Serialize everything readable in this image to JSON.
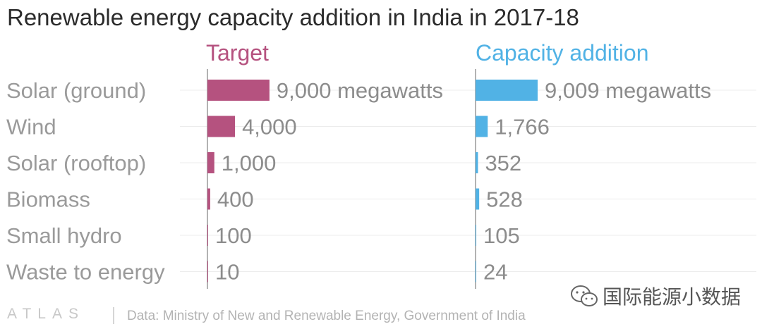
{
  "chart_data": {
    "type": "bar",
    "title": "Renewable energy capacity addition in India in 2017-18",
    "categories": [
      "Solar (ground)",
      "Wind",
      "Solar (rooftop)",
      "Biomass",
      "Small hydro",
      "Waste to energy"
    ],
    "series": [
      {
        "name": "Target",
        "values": [
          9000,
          4000,
          1000,
          400,
          100,
          10
        ],
        "labels": [
          "9,000 megawatts",
          "4,000",
          "1,000",
          "400",
          "100",
          "10"
        ],
        "color": "#b5527f"
      },
      {
        "name": "Capacity addition",
        "values": [
          9009,
          1766,
          352,
          528,
          105,
          24
        ],
        "labels": [
          "9,009 megawatts",
          "1,766",
          "352",
          "528",
          "105",
          "24"
        ],
        "color": "#51b2e5"
      }
    ],
    "xlim": [
      0,
      10000
    ],
    "orientation": "horizontal"
  },
  "footer": {
    "brand": "ATLAS",
    "source": "Data: Ministry of New and Renewable Energy, Government of India"
  },
  "watermark": {
    "text": "国际能源小数据"
  },
  "colors": {
    "grid": "#ececec",
    "axis": "#999999",
    "category_text": "#9a9a9a",
    "value_text": "#8c8c8c"
  }
}
